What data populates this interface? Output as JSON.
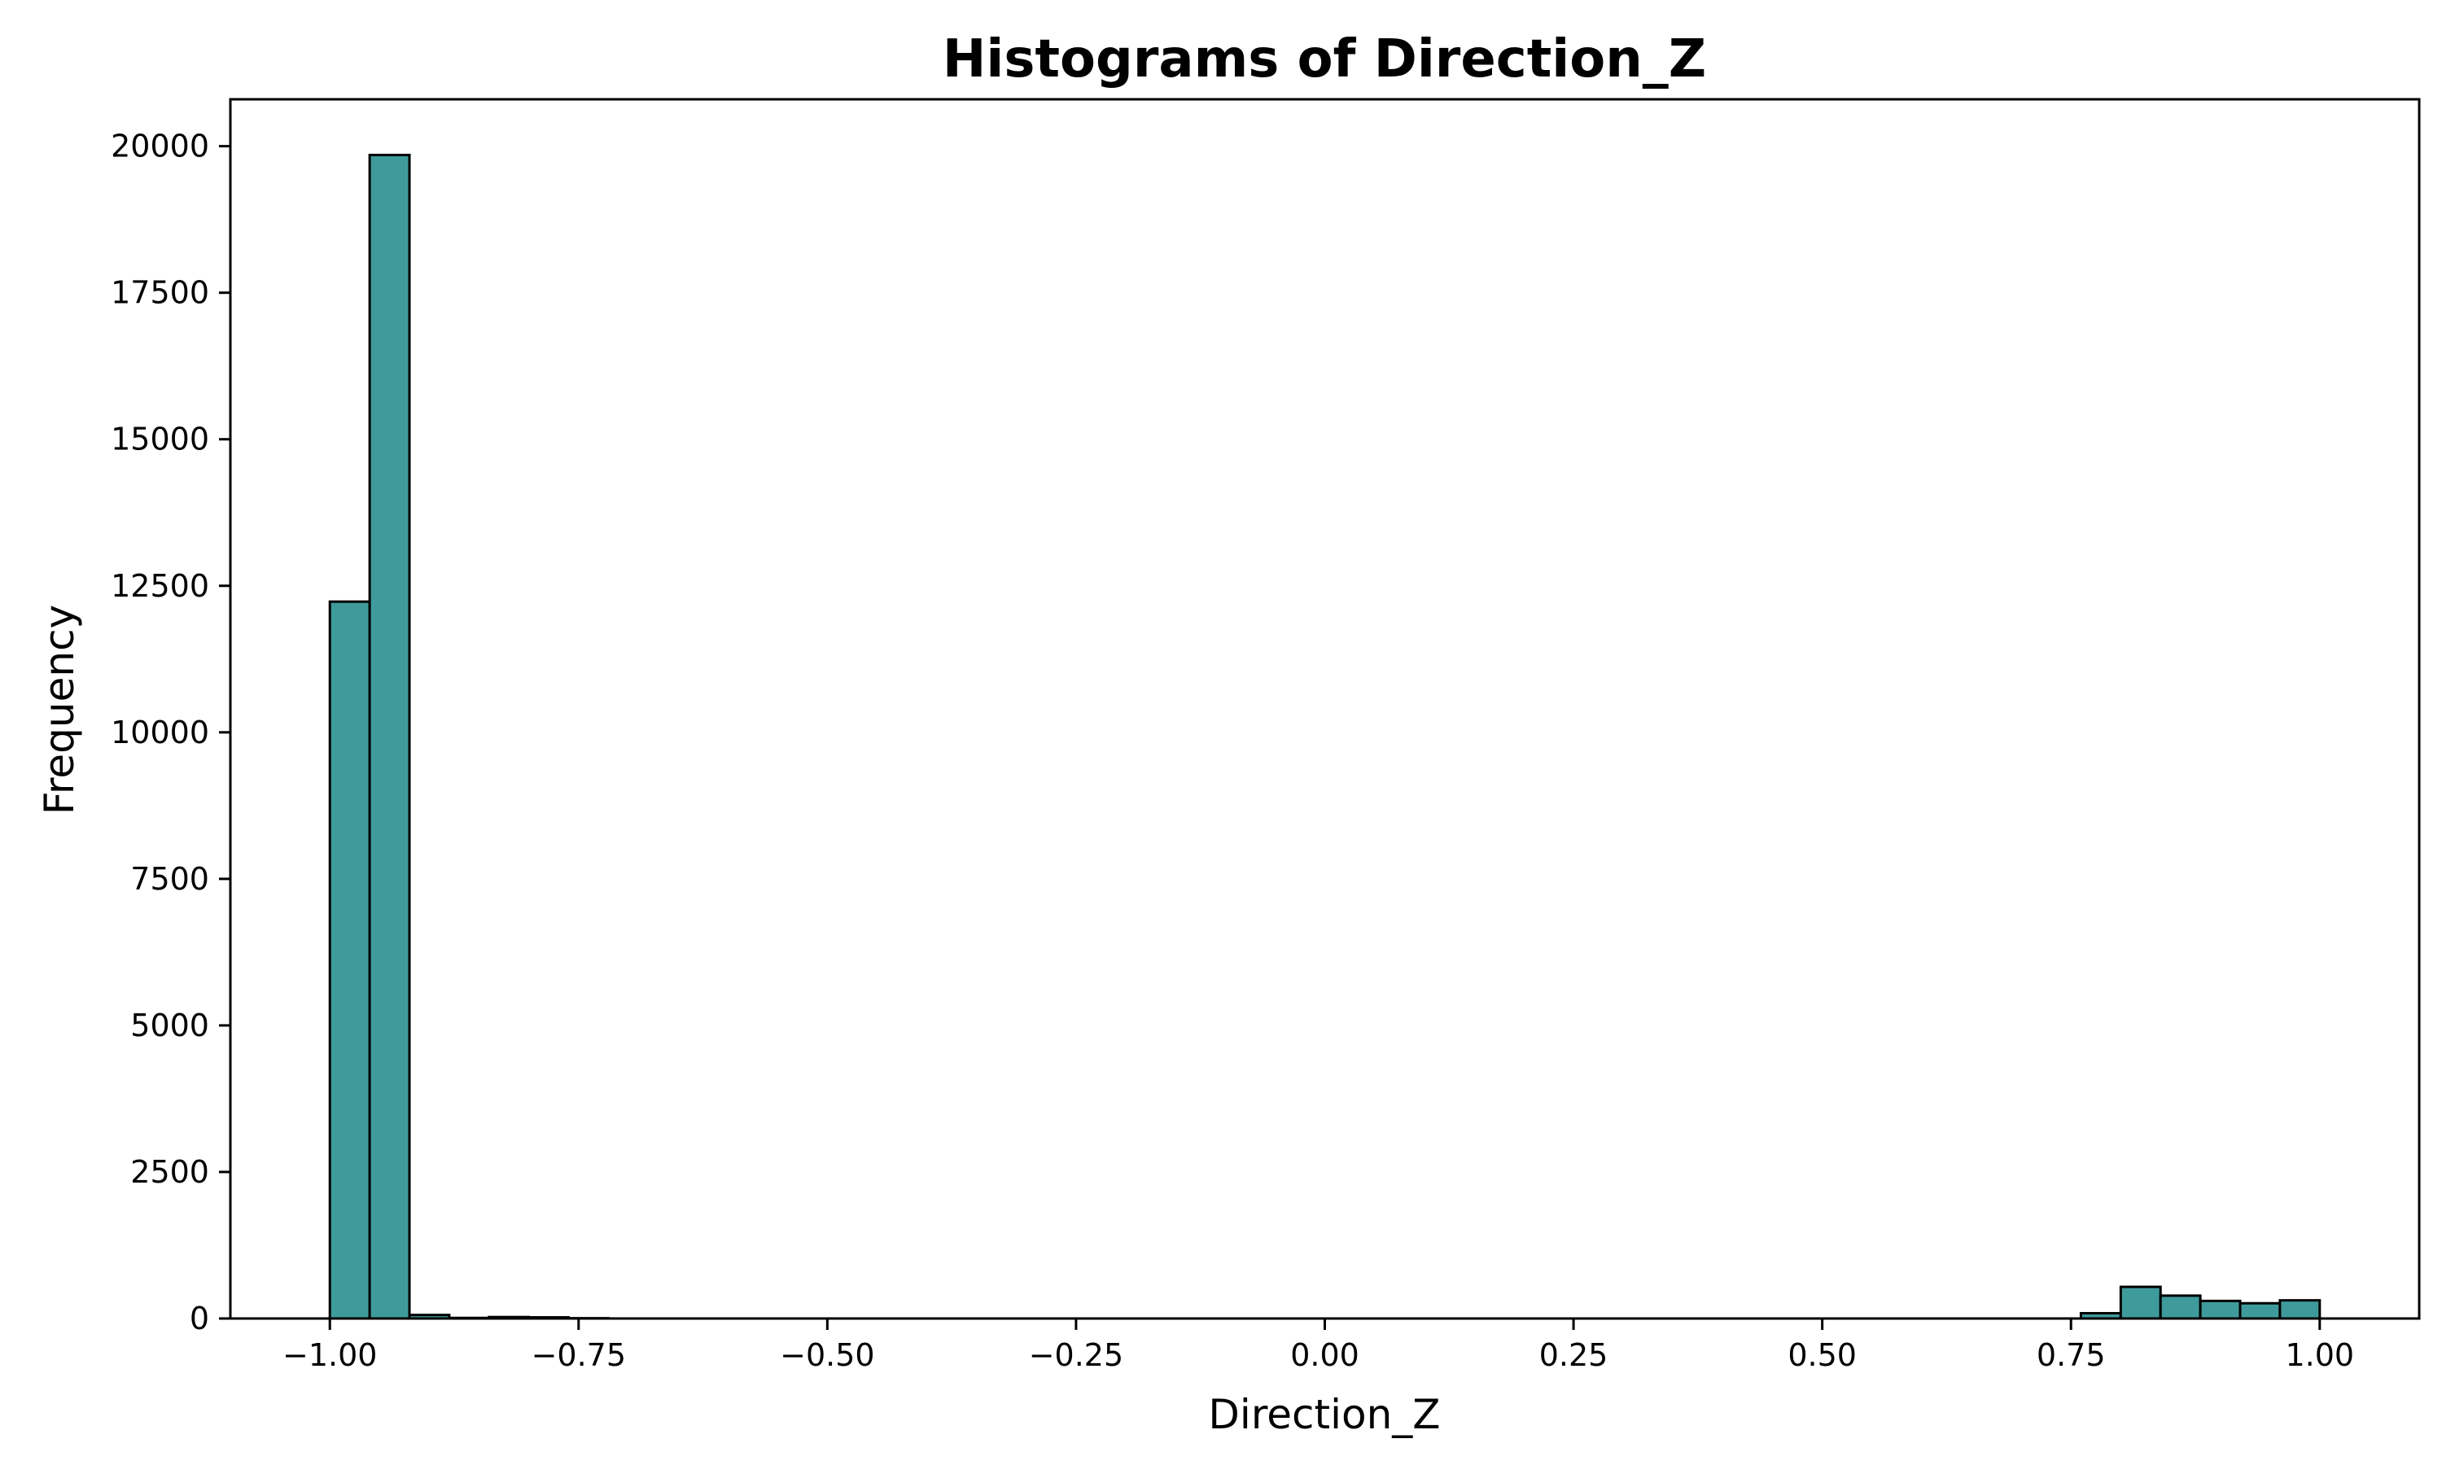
{
  "chart_data": {
    "type": "bar",
    "title": "Histograms of Direction_Z",
    "xlabel": "Direction_Z",
    "ylabel": "Frequency",
    "xlim": [
      -1.1,
      1.1
    ],
    "ylim": [
      0,
      20800
    ],
    "xticks": [
      -1.0,
      -0.75,
      -0.5,
      -0.25,
      0.0,
      0.25,
      0.5,
      0.75,
      1.0
    ],
    "xtick_labels": [
      "−1.00",
      "−0.75",
      "−0.50",
      "−0.25",
      "0.00",
      "0.25",
      "0.50",
      "0.75",
      "1.00"
    ],
    "yticks": [
      0,
      2500,
      5000,
      7500,
      10000,
      12500,
      15000,
      17500,
      20000
    ],
    "ytick_labels": [
      "0",
      "2500",
      "5000",
      "7500",
      "10000",
      "12500",
      "15000",
      "17500",
      "20000"
    ],
    "grid": false,
    "bar_color": "#3f9b9b",
    "edge_color": "#000000",
    "bins": [
      {
        "x0": -1.0,
        "x1": -0.96,
        "count": 12230
      },
      {
        "x0": -0.96,
        "x1": -0.92,
        "count": 19850
      },
      {
        "x0": -0.92,
        "x1": -0.88,
        "count": 60
      },
      {
        "x0": -0.88,
        "x1": -0.84,
        "count": 10
      },
      {
        "x0": -0.84,
        "x1": -0.8,
        "count": 25
      },
      {
        "x0": -0.8,
        "x1": -0.76,
        "count": 20
      },
      {
        "x0": -0.76,
        "x1": -0.72,
        "count": 5
      },
      {
        "x0": 0.76,
        "x1": 0.8,
        "count": 90
      },
      {
        "x0": 0.8,
        "x1": 0.84,
        "count": 540
      },
      {
        "x0": 0.84,
        "x1": 0.88,
        "count": 390
      },
      {
        "x0": 0.88,
        "x1": 0.92,
        "count": 300
      },
      {
        "x0": 0.92,
        "x1": 0.96,
        "count": 260
      },
      {
        "x0": 0.96,
        "x1": 1.0,
        "count": 310
      }
    ]
  }
}
